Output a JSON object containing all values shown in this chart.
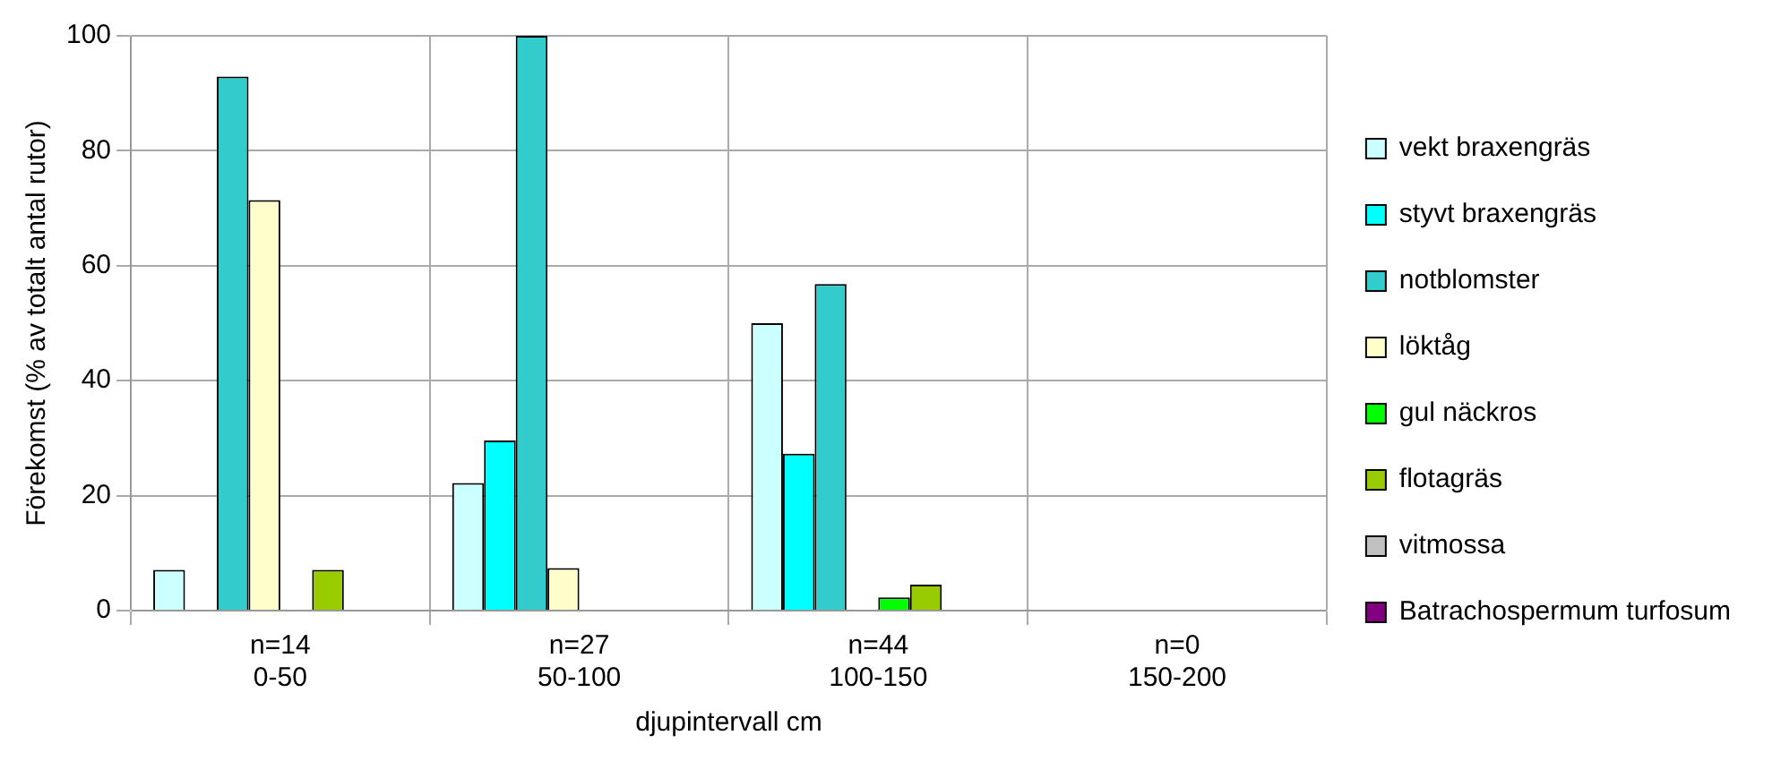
{
  "chart_data": {
    "type": "bar",
    "xlabel": "djupintervall cm",
    "ylabel": "Förekomst (% av totalt antal rutor)",
    "categories": [
      "n=14\n0-50",
      "n=27\n50-100",
      "n=44\n100-150",
      "n=0\n150-200"
    ],
    "series": [
      {
        "name": "vekt braxengräs",
        "color": "#ccffff",
        "values": [
          7.1,
          22.2,
          50,
          null
        ]
      },
      {
        "name": "styvt braxengräs",
        "color": "#00ffff",
        "values": [
          null,
          29.6,
          27.3,
          null
        ]
      },
      {
        "name": "notblomster",
        "color": "#33cccc",
        "values": [
          92.9,
          100,
          56.8,
          null
        ]
      },
      {
        "name": "löktåg",
        "color": "#ffffcc",
        "values": [
          71.4,
          7.4,
          null,
          null
        ]
      },
      {
        "name": "gul näckros",
        "color": "#00ff00",
        "values": [
          null,
          null,
          2.3,
          null
        ]
      },
      {
        "name": "flotagräs",
        "color": "#99cc00",
        "values": [
          7.1,
          null,
          4.5,
          null
        ]
      },
      {
        "name": "vitmossa",
        "color": "#c0c0c0",
        "values": [
          null,
          null,
          null,
          null
        ]
      },
      {
        "name": "Batrachospermum turfosum",
        "color": "#800080",
        "values": [
          null,
          null,
          null,
          null
        ]
      }
    ],
    "ylim": [
      0,
      100
    ],
    "yticks": [
      0,
      20,
      40,
      60,
      80,
      100
    ],
    "grid": true,
    "legend": "right"
  }
}
